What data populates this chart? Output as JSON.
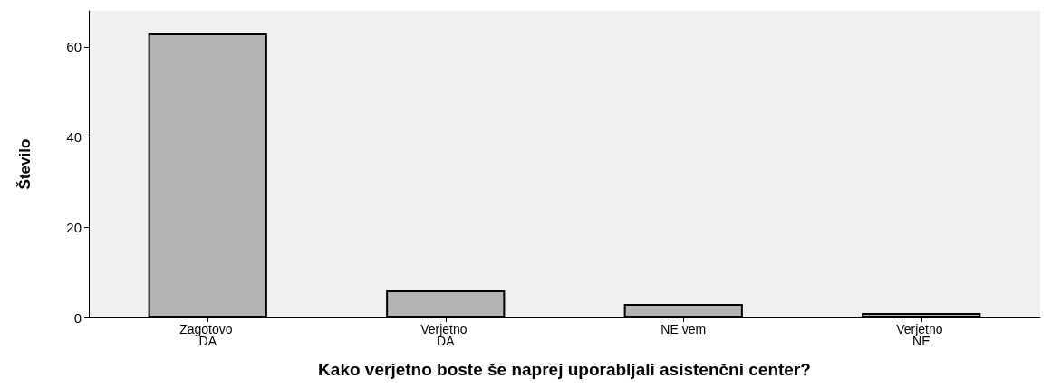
{
  "chart_data": {
    "type": "bar",
    "xlabel": "Kako verjetno boste še naprej uporabljali asistenčni center?",
    "ylabel": "Število",
    "categories": [
      "Zagotovo DA",
      "Verjetno DA",
      "NE vem",
      "Verjetno NE"
    ],
    "values": [
      63,
      6,
      3,
      1
    ],
    "color": "#b4b4b4",
    "ylim": [
      0,
      68
    ],
    "yticks": [
      0,
      20,
      40,
      60
    ],
    "grid": false
  }
}
